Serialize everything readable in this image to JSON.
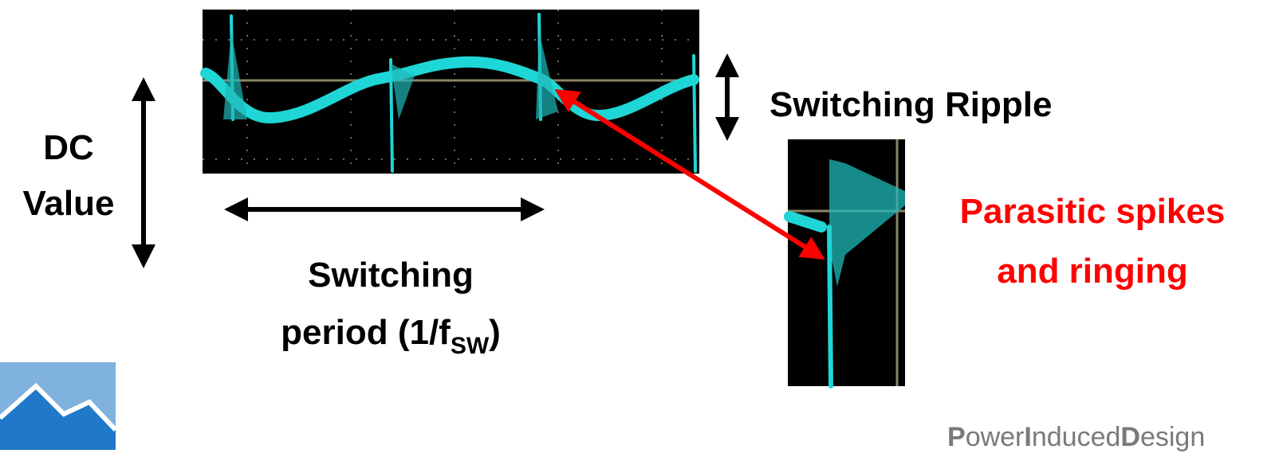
{
  "labels": {
    "dc_value": [
      "DC",
      "Value"
    ],
    "switching_ripple": "Switching Ripple",
    "switching_period": {
      "line1": "Switching",
      "line2": "period (1/f",
      "subscript": "SW",
      "close": ")"
    },
    "parasitic": [
      "Parasitic spikes",
      "and ringing"
    ]
  },
  "logo": {
    "parts": [
      "P",
      "ower",
      "I",
      "nduced",
      "D",
      "esign"
    ]
  }
}
